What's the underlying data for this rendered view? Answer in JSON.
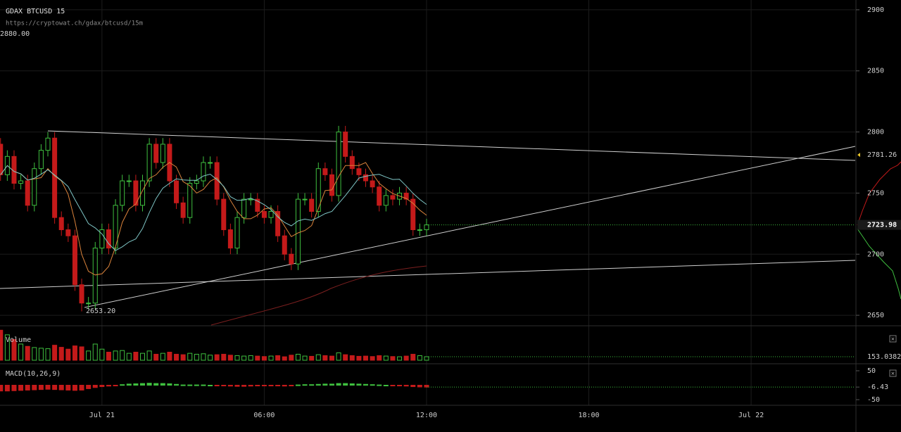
{
  "chart_data": [
    {
      "type": "candlestick",
      "title": "GDAX BTCUSD 15",
      "subtitle": "https://cryptowat.ch/gdax/btcusd/15m",
      "high_label": "2880.00",
      "low_label": "2653.20",
      "marker_price": 2781.26,
      "up_color": "#3fbf3f",
      "down_color": "#c41a1a",
      "x": [
        -3.75,
        -3.5,
        -3.25,
        -3,
        -2.75,
        -2.5,
        -2.25,
        -2,
        -1.75,
        -1.5,
        -1.25,
        -1,
        -0.75,
        -0.5,
        -0.25,
        0,
        0.25,
        0.5,
        0.75,
        1,
        1.25,
        1.5,
        1.75,
        2,
        2.25,
        2.5,
        2.75,
        3,
        3.25,
        3.5,
        3.75,
        4,
        4.25,
        4.5,
        4.75,
        5,
        5.25,
        5.5,
        5.75,
        6,
        6.25,
        6.5,
        6.75,
        7,
        7.25,
        7.5,
        7.75,
        8,
        8.25,
        8.5,
        8.75,
        9,
        9.25,
        9.5,
        9.75,
        10,
        10.25,
        10.5,
        10.75,
        11,
        11.25,
        11.5,
        11.75,
        12
      ],
      "open": [
        2790,
        2765,
        2780,
        2758,
        2760,
        2740,
        2770,
        2785,
        2795,
        2730,
        2720,
        2715,
        2675,
        2660,
        2660,
        2705,
        2720,
        2705,
        2740,
        2760,
        2760,
        2740,
        2760,
        2790,
        2775,
        2790,
        2760,
        2742,
        2730,
        2758,
        2760,
        2775,
        2775,
        2745,
        2720,
        2705,
        2730,
        2745,
        2745,
        2735,
        2730,
        2735,
        2715,
        2700,
        2692,
        2745,
        2745,
        2735,
        2770,
        2765,
        2748,
        2800,
        2780,
        2770,
        2765,
        2760,
        2755,
        2740,
        2748,
        2745,
        2750,
        2745,
        2720,
        2720
      ],
      "high": [
        2795,
        2785,
        2785,
        2765,
        2765,
        2775,
        2790,
        2800,
        2800,
        2735,
        2725,
        2720,
        2680,
        2665,
        2710,
        2725,
        2725,
        2745,
        2765,
        2765,
        2765,
        2765,
        2795,
        2795,
        2795,
        2795,
        2765,
        2747,
        2763,
        2765,
        2780,
        2780,
        2780,
        2750,
        2725,
        2735,
        2750,
        2750,
        2750,
        2740,
        2740,
        2740,
        2720,
        2705,
        2750,
        2750,
        2750,
        2775,
        2775,
        2770,
        2805,
        2805,
        2785,
        2775,
        2770,
        2765,
        2760,
        2753,
        2753,
        2755,
        2755,
        2750,
        2725,
        2729
      ],
      "low": [
        2760,
        2760,
        2753,
        2753,
        2735,
        2735,
        2765,
        2780,
        2725,
        2715,
        2710,
        2670,
        2653.2,
        2655,
        2655,
        2700,
        2700,
        2700,
        2735,
        2755,
        2735,
        2735,
        2755,
        2770,
        2770,
        2755,
        2737,
        2725,
        2725,
        2753,
        2755,
        2770,
        2740,
        2715,
        2700,
        2700,
        2725,
        2740,
        2730,
        2725,
        2725,
        2710,
        2695,
        2687,
        2687,
        2740,
        2730,
        2730,
        2760,
        2743,
        2743,
        2775,
        2765,
        2760,
        2755,
        2750,
        2735,
        2735,
        2740,
        2740,
        2740,
        2715,
        2715,
        2715
      ],
      "close": [
        2765,
        2780,
        2758,
        2760,
        2740,
        2770,
        2785,
        2795,
        2730,
        2720,
        2715,
        2675,
        2660,
        2660,
        2705,
        2720,
        2705,
        2740,
        2760,
        2760,
        2740,
        2760,
        2790,
        2775,
        2790,
        2760,
        2742,
        2730,
        2758,
        2760,
        2775,
        2775,
        2745,
        2720,
        2705,
        2730,
        2745,
        2745,
        2735,
        2730,
        2735,
        2715,
        2700,
        2692,
        2745,
        2745,
        2735,
        2770,
        2765,
        2748,
        2800,
        2780,
        2770,
        2765,
        2760,
        2755,
        2740,
        2748,
        2745,
        2750,
        2745,
        2720,
        2720,
        2723.98
      ],
      "xlim": [
        -3.77,
        27.85
      ],
      "xticks": [
        {
          "value": 0,
          "label": "Jul 21"
        },
        {
          "value": 6,
          "label": "06:00"
        },
        {
          "value": 12,
          "label": "12:00"
        },
        {
          "value": 18,
          "label": "18:00"
        },
        {
          "value": 24,
          "label": "Jul 22"
        }
      ],
      "ylim": [
        2642,
        2908
      ],
      "yticks": [
        2650,
        2700,
        2750,
        2800,
        2850,
        2900
      ],
      "grid": true
    },
    {
      "type": "bar",
      "title": "Volume",
      "ylim": [
        0,
        1400
      ],
      "values": [
        1300,
        1100,
        900,
        700,
        600,
        550,
        520,
        500,
        650,
        560,
        480,
        620,
        580,
        400,
        700,
        480,
        350,
        400,
        420,
        300,
        350,
        300,
        400,
        260,
        300,
        350,
        260,
        240,
        300,
        260,
        280,
        220,
        240,
        260,
        220,
        200,
        180,
        200,
        180,
        160,
        180,
        200,
        150,
        220,
        260,
        180,
        170,
        240,
        200,
        180,
        320,
        240,
        200,
        170,
        180,
        160,
        200,
        180,
        160,
        150,
        180,
        260,
        200,
        153.03826
      ]
    },
    {
      "type": "bar",
      "title": "MACD(10,26,9)",
      "ylim": [
        -67,
        67
      ],
      "yticks": [
        50,
        -6.43,
        -50
      ],
      "values": [
        -20,
        -20,
        -19,
        -18,
        -17,
        -16,
        -15,
        -14,
        -15,
        -16,
        -17,
        -18,
        -17,
        -12,
        -8,
        -5,
        -3,
        -1,
        2,
        4,
        5,
        6,
        7,
        6,
        6,
        5,
        3,
        1,
        1,
        1,
        1,
        0,
        -1,
        -2,
        -3,
        -4,
        -4,
        -3,
        -2,
        -2,
        -1,
        -2,
        -3,
        -2,
        1,
        2,
        2,
        3,
        4,
        4,
        6,
        6,
        5,
        4,
        3,
        2,
        1,
        0,
        -1,
        -2,
        -3,
        -5,
        -6,
        -6.43
      ]
    }
  ]
}
